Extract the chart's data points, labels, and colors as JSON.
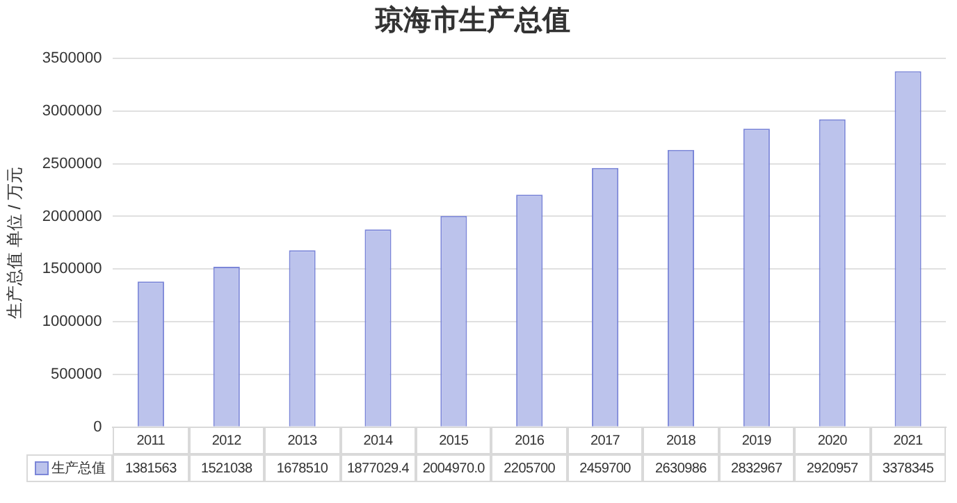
{
  "chart_data": {
    "type": "bar",
    "title": "琼海市生产总值",
    "ylabel": "生产总值 单位 / 万元",
    "categories": [
      "2011",
      "2012",
      "2013",
      "2014",
      "2015",
      "2016",
      "2017",
      "2018",
      "2019",
      "2020",
      "2021"
    ],
    "series": [
      {
        "name": "生产总值",
        "color": "#bcc3ec",
        "values": [
          1381563,
          1521038,
          1678510,
          1877029.4,
          2004970,
          2205700,
          2459700,
          2630986,
          2832967,
          2920957,
          3378345
        ],
        "value_labels": [
          "1381563",
          "1521038",
          "1678510",
          "1877029.4",
          "2004970.0",
          "2205700",
          "2459700",
          "2630986",
          "2832967",
          "2920957",
          "3378345"
        ]
      }
    ],
    "ylim": [
      0,
      3500000
    ],
    "yticks": [
      0,
      500000,
      1000000,
      1500000,
      2000000,
      2500000,
      3000000,
      3500000
    ],
    "grid": "y",
    "legend": "bottom",
    "data_labels": true
  }
}
